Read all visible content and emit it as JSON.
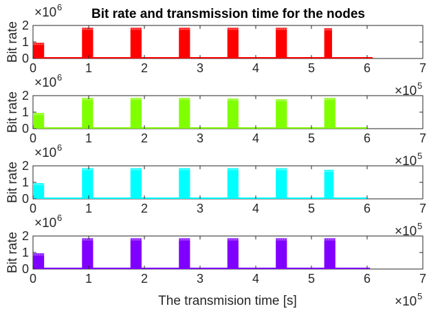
{
  "title": "Bit rate and transmission time for the nodes",
  "xlabel": "The transmision time [s]",
  "chart_data": [
    {
      "type": "bar",
      "node": 1,
      "color": "#ff0000",
      "ylabel": "Bit rate",
      "y_multiplier": "×10",
      "y_exponent": "6",
      "x_multiplier": "×10",
      "x_exponent": "5",
      "xlim": [
        0,
        700000
      ],
      "ylim": [
        0,
        2000000
      ],
      "xticks": [
        0,
        100000,
        200000,
        300000,
        400000,
        500000,
        600000,
        700000
      ],
      "xtick_labels": [
        "0",
        "1",
        "2",
        "3",
        "4",
        "5",
        "6",
        "7"
      ],
      "yticks": [
        0,
        1000000,
        2000000
      ],
      "ytick_labels": [
        "0",
        "1",
        "2"
      ],
      "baseline_end": 610000,
      "bursts": [
        {
          "start": 0,
          "end": 20000,
          "value": 950000
        },
        {
          "start": 88000,
          "end": 108000,
          "value": 1860000
        },
        {
          "start": 175000,
          "end": 195000,
          "value": 1860000
        },
        {
          "start": 262000,
          "end": 282000,
          "value": 1860000
        },
        {
          "start": 349000,
          "end": 369000,
          "value": 1860000
        },
        {
          "start": 436000,
          "end": 456000,
          "value": 1860000
        },
        {
          "start": 523000,
          "end": 537000,
          "value": 1830000
        }
      ]
    },
    {
      "type": "bar",
      "node": 2,
      "color": "#80ff00",
      "ylabel": "Bit rate",
      "y_multiplier": "×10",
      "y_exponent": "6",
      "x_multiplier": "×10",
      "x_exponent": "5",
      "xlim": [
        0,
        700000
      ],
      "ylim": [
        0,
        2000000
      ],
      "xticks": [
        0,
        100000,
        200000,
        300000,
        400000,
        500000,
        600000,
        700000
      ],
      "xtick_labels": [
        "0",
        "1",
        "2",
        "3",
        "4",
        "5",
        "6",
        "7"
      ],
      "yticks": [
        0,
        1000000,
        2000000
      ],
      "ytick_labels": [
        "0",
        "1",
        "2"
      ],
      "baseline_end": 600000,
      "bursts": [
        {
          "start": 0,
          "end": 20000,
          "value": 950000
        },
        {
          "start": 88000,
          "end": 108000,
          "value": 1860000
        },
        {
          "start": 175000,
          "end": 195000,
          "value": 1860000
        },
        {
          "start": 262000,
          "end": 282000,
          "value": 1860000
        },
        {
          "start": 349000,
          "end": 369000,
          "value": 1820000
        },
        {
          "start": 436000,
          "end": 456000,
          "value": 1780000
        },
        {
          "start": 523000,
          "end": 543000,
          "value": 1860000
        }
      ]
    },
    {
      "type": "bar",
      "node": 3,
      "color": "#00ffff",
      "ylabel": "Bit rate",
      "y_multiplier": "×10",
      "y_exponent": "6",
      "x_multiplier": "×10",
      "x_exponent": "5",
      "xlim": [
        0,
        700000
      ],
      "ylim": [
        0,
        2000000
      ],
      "xticks": [
        0,
        100000,
        200000,
        300000,
        400000,
        500000,
        600000,
        700000
      ],
      "xtick_labels": [
        "0",
        "1",
        "2",
        "3",
        "4",
        "5",
        "6",
        "7"
      ],
      "yticks": [
        0,
        1000000,
        2000000
      ],
      "ytick_labels": [
        "0",
        "1",
        "2"
      ],
      "baseline_end": 600000,
      "bursts": [
        {
          "start": 0,
          "end": 20000,
          "value": 950000
        },
        {
          "start": 88000,
          "end": 108000,
          "value": 1860000
        },
        {
          "start": 175000,
          "end": 195000,
          "value": 1860000
        },
        {
          "start": 262000,
          "end": 282000,
          "value": 1860000
        },
        {
          "start": 349000,
          "end": 369000,
          "value": 1860000
        },
        {
          "start": 436000,
          "end": 456000,
          "value": 1860000
        },
        {
          "start": 523000,
          "end": 540000,
          "value": 1760000
        }
      ]
    },
    {
      "type": "bar",
      "node": 4,
      "color": "#8000ff",
      "ylabel": "Bit rate",
      "y_multiplier": "×10",
      "y_exponent": "6",
      "x_multiplier": "×10",
      "x_exponent": "5",
      "xlim": [
        0,
        700000
      ],
      "ylim": [
        0,
        2000000
      ],
      "xticks": [
        0,
        100000,
        200000,
        300000,
        400000,
        500000,
        600000,
        700000
      ],
      "xtick_labels": [
        "0",
        "1",
        "2",
        "3",
        "4",
        "5",
        "6",
        "7"
      ],
      "yticks": [
        0,
        1000000,
        2000000
      ],
      "ytick_labels": [
        "0",
        "1",
        "2"
      ],
      "baseline_end": 605000,
      "bursts": [
        {
          "start": 0,
          "end": 20000,
          "value": 950000
        },
        {
          "start": 88000,
          "end": 108000,
          "value": 1860000
        },
        {
          "start": 175000,
          "end": 195000,
          "value": 1860000
        },
        {
          "start": 262000,
          "end": 282000,
          "value": 1860000
        },
        {
          "start": 349000,
          "end": 369000,
          "value": 1860000
        },
        {
          "start": 436000,
          "end": 456000,
          "value": 1860000
        },
        {
          "start": 523000,
          "end": 543000,
          "value": 1860000
        }
      ]
    }
  ]
}
